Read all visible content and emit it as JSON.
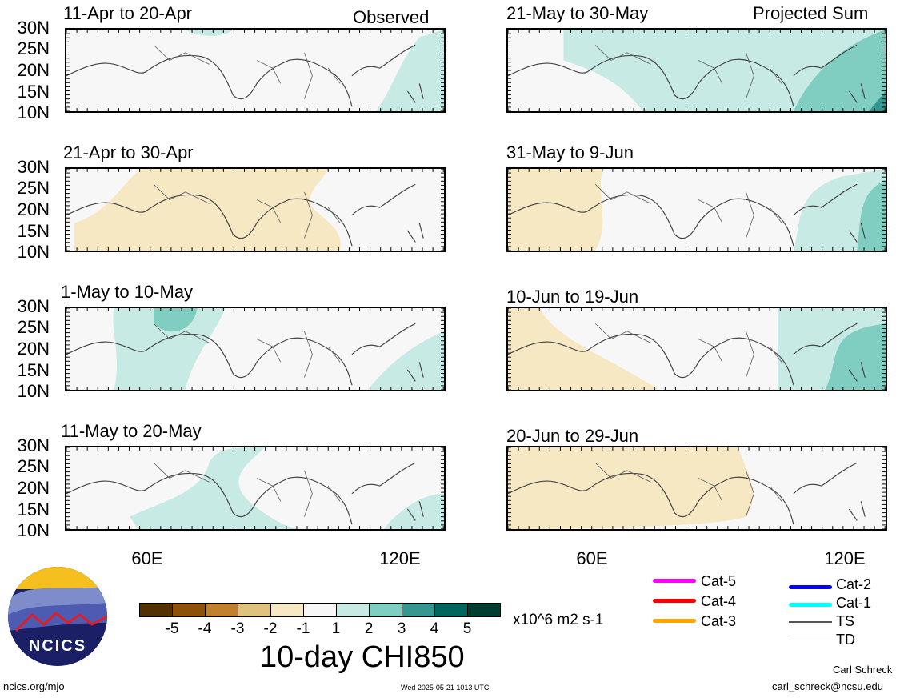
{
  "corner_titles": {
    "left": "Observed",
    "right": "Projected Sum"
  },
  "panels_left": [
    {
      "title": "11-Apr to 20-Apr"
    },
    {
      "title": "21-Apr to 30-Apr"
    },
    {
      "title": "1-May to 10-May"
    },
    {
      "title": "11-May to 20-May"
    }
  ],
  "panels_right": [
    {
      "title": "21-May to 30-May"
    },
    {
      "title": "31-May to 9-Jun"
    },
    {
      "title": "10-Jun to 19-Jun"
    },
    {
      "title": "20-Jun to 29-Jun"
    }
  ],
  "lat_labels": [
    "30N",
    "25N",
    "20N",
    "15N",
    "10N"
  ],
  "lon_labels": [
    "60E",
    "120E"
  ],
  "colorbar": {
    "colors": [
      "#543005",
      "#8c510a",
      "#bf812d",
      "#dfc27d",
      "#f6e8c3",
      "#f7f7f7",
      "#c7eae5",
      "#80cdc1",
      "#35978f",
      "#01665e",
      "#003c30"
    ],
    "labels": [
      "-5",
      "-4",
      "-3",
      "-2",
      "-1",
      "1",
      "2",
      "3",
      "4",
      "5"
    ],
    "units": "x10^6 m2 s-1",
    "title": "10-day CHI850"
  },
  "legend": {
    "left": [
      {
        "label": "Cat-5",
        "color": "#ff00ff"
      },
      {
        "label": "Cat-4",
        "color": "#ff0000"
      },
      {
        "label": "Cat-3",
        "color": "#ffa500"
      }
    ],
    "right": [
      {
        "label": "Cat-2",
        "color": "#0000ff"
      },
      {
        "label": "Cat-1",
        "color": "#00ffff"
      },
      {
        "label": "TS",
        "color": "#555555"
      },
      {
        "label": "TD",
        "color": "#aaaaaa"
      }
    ]
  },
  "logo": {
    "text": "NCICS"
  },
  "footer": {
    "url": "ncics.org/mjo",
    "timestamp": "Wed 2025-05-21 1013 UTC",
    "author": "Carl Schreck",
    "email": "carl_schreck@ncsu.edu"
  }
}
